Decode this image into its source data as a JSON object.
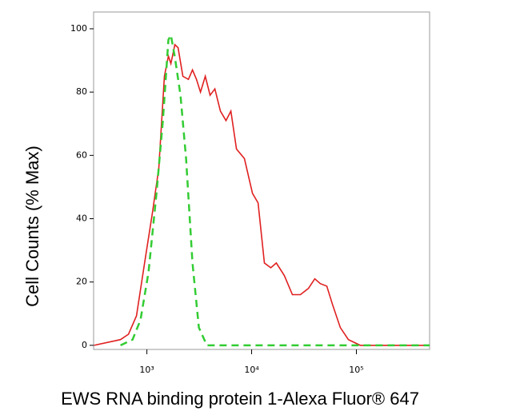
{
  "chart_data": {
    "type": "line",
    "x_label": "EWS RNA binding protein 1-Alexa Fluor® 647",
    "y_label": "Cell Counts (% Max)",
    "xlog": true,
    "xlim": [
      310,
      500000
    ],
    "ylim": [
      -1.3,
      105.3
    ],
    "xticks": [
      {
        "value": 1000,
        "label": "10³"
      },
      {
        "value": 10000,
        "label": "10⁴"
      },
      {
        "value": 100000,
        "label": "10⁵"
      }
    ],
    "yticks": [
      0,
      20,
      40,
      60,
      80,
      100
    ],
    "series": [
      {
        "color": "#e02020",
        "dash": false,
        "x": [
          313,
          560,
          667,
          796,
          949,
          1130,
          1300,
          1470,
          1606,
          1695,
          1850,
          1985,
          2207,
          2493,
          2725,
          2977,
          3250,
          3608,
          4010,
          4457,
          5036,
          5690,
          6338,
          7163,
          8536,
          10180,
          11530,
          13240,
          15250,
          17220,
          20560,
          24500,
          29200,
          34860,
          40100,
          45300,
          52200,
          59000,
          70300,
          83900,
          109000,
          155000,
          500000
        ],
        "values": [
          0,
          1.8,
          3.5,
          9.3,
          25.8,
          42,
          56,
          85,
          91.4,
          89,
          95,
          94,
          85,
          84,
          87,
          84,
          80,
          85,
          79,
          81,
          74,
          71,
          74,
          62,
          59,
          48,
          45,
          26,
          24.5,
          26,
          22,
          16,
          16,
          18,
          21,
          19.5,
          18.7,
          13,
          5.6,
          1.8,
          0,
          0,
          0
        ]
      },
      {
        "color": "#33cc33",
        "dash": true,
        "x": [
          560,
          730,
          869,
          1036,
          1235,
          1421,
          1606,
          1695,
          1850,
          2094,
          2367,
          2725,
          3135,
          3740,
          500000
        ],
        "values": [
          0,
          1.8,
          8,
          23,
          48,
          71,
          96.5,
          98,
          91,
          79,
          59,
          26,
          5.6,
          0,
          0
        ]
      }
    ]
  }
}
